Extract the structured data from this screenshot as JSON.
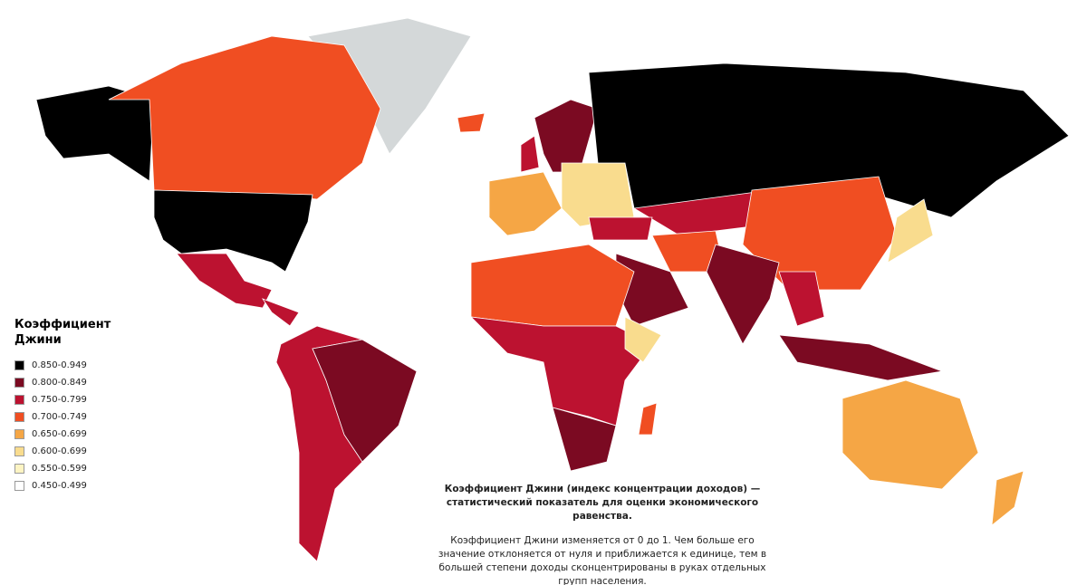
{
  "legend": {
    "title": "Коэффициент Джини",
    "items": [
      {
        "label": "0.850-0.949",
        "color": "#000000"
      },
      {
        "label": "0.800-0.849",
        "color": "#7b0a22"
      },
      {
        "label": "0.750-0.799",
        "color": "#bc1230"
      },
      {
        "label": "0.700-0.749",
        "color": "#f04e22"
      },
      {
        "label": "0.650-0.699",
        "color": "#f5a645"
      },
      {
        "label": "0.600-0.699",
        "color": "#f9dc8e"
      },
      {
        "label": "0.550-0.599",
        "color": "#fdf4c3"
      },
      {
        "label": "0.450-0.499",
        "color": "#ffffff"
      }
    ]
  },
  "caption": {
    "definition": "Коэффициент Джини (индекс концентрации доходов) — статистический показатель для оценки экономического равенства.",
    "explanation": "Коэффициент Джини изменяется от 0 до 1. Чем больше его значение отклоняется от нуля и приближается к единице, тем в большей степени доходы сконцентрированы в руках отдельных групп населения."
  }
}
